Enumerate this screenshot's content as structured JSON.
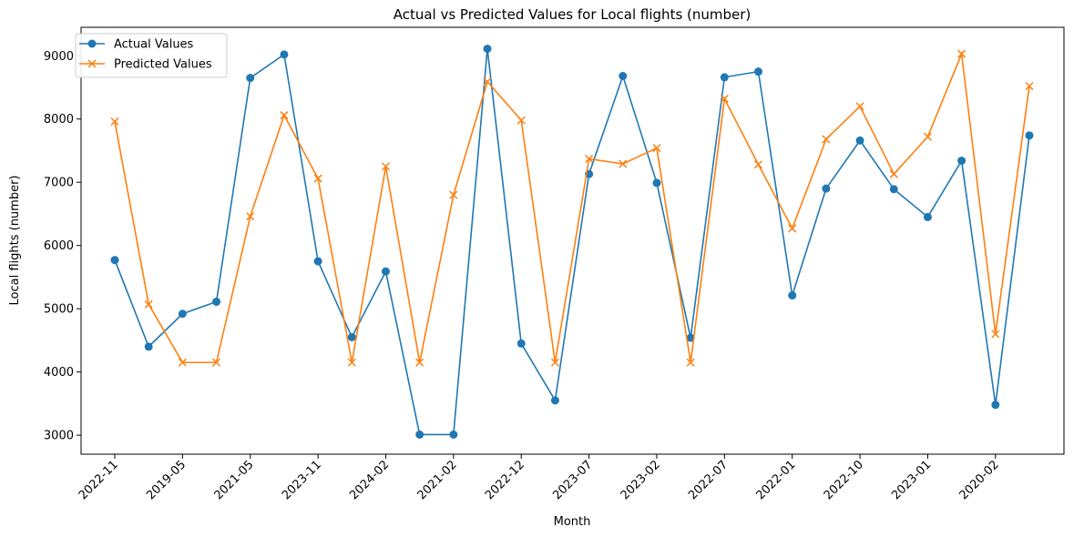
{
  "chart_data": {
    "type": "line",
    "title": "Actual vs Predicted Values for Local flights (number)",
    "xlabel": "Month",
    "ylabel": "Local flights (number)",
    "ylim": [
      2700,
      9450
    ],
    "yticks": [
      3000,
      4000,
      5000,
      6000,
      7000,
      8000,
      9000
    ],
    "grid": false,
    "legend_position": "top-left",
    "categories": [
      "2022-11",
      "2019-05",
      "2021-05",
      "2023-11",
      "2024-02",
      "2021-02",
      "2022-12",
      "2023-07",
      "2023-02",
      "2022-07",
      "2022-01",
      "2022-10",
      "2023-01",
      "2020-02"
    ],
    "x": [
      0,
      1,
      2,
      3,
      4,
      5,
      6,
      7,
      8,
      9,
      10,
      11,
      12,
      13,
      14,
      15,
      16,
      17,
      18,
      19,
      20,
      21,
      22,
      23,
      24,
      25,
      26,
      27
    ],
    "series": [
      {
        "name": "Actual Values",
        "color": "#1f77b4",
        "marker": "circle",
        "values": [
          5770,
          4400,
          4920,
          5110,
          8650,
          9020,
          5750,
          4550,
          5590,
          3010,
          3010,
          9110,
          4450,
          3550,
          7130,
          8680,
          6990,
          4540,
          8660,
          8750,
          5210,
          6900,
          7660,
          6890,
          6450,
          7340,
          3480,
          7740
        ]
      },
      {
        "name": "Predicted Values",
        "color": "#ff7f0e",
        "marker": "x",
        "values": [
          7960,
          5070,
          4150,
          4150,
          6460,
          8060,
          7060,
          4150,
          7250,
          4150,
          6800,
          8590,
          7980,
          4150,
          7370,
          7290,
          7540,
          4150,
          8320,
          7280,
          6270,
          7680,
          8200,
          7130,
          7720,
          9030,
          4600,
          8520
        ]
      }
    ]
  }
}
